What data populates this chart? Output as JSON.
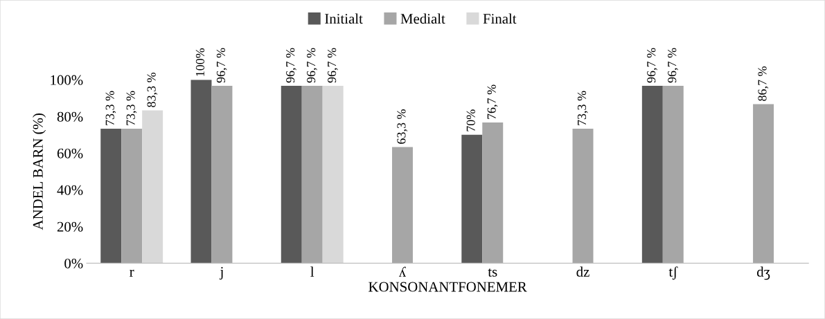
{
  "chart_data": {
    "type": "bar",
    "xlabel": "KONSONANTFONEMER",
    "ylabel": "ANDEL BARN (%)",
    "categories": [
      "r",
      "j",
      "l",
      "ʎ",
      "ts",
      "dz",
      "tʃ",
      "dʒ"
    ],
    "series": [
      {
        "name": "Initialt",
        "color": "#595959",
        "values": [
          73.3,
          100,
          96.7,
          null,
          70,
          null,
          96.7,
          null
        ],
        "value_labels": [
          "73,3 %",
          "100%",
          "96,7 %",
          null,
          "70%",
          null,
          "96,7 %",
          null
        ]
      },
      {
        "name": "Medialt",
        "color": "#a6a6a6",
        "values": [
          73.3,
          96.7,
          96.7,
          63.3,
          76.7,
          73.3,
          96.7,
          86.7
        ],
        "value_labels": [
          "73,3 %",
          "96,7 %",
          "96,7 %",
          "63,3 %",
          "76,7 %",
          "73,3 %",
          "96,7 %",
          "86,7 %"
        ]
      },
      {
        "name": "Finalt",
        "color": "#d9d9d9",
        "values": [
          83.3,
          null,
          96.7,
          null,
          null,
          null,
          null,
          null
        ],
        "value_labels": [
          "83,3 %",
          null,
          "96,7 %",
          null,
          null,
          null,
          null,
          null
        ]
      }
    ],
    "ylim": [
      0,
      100
    ],
    "yticks": [
      {
        "value": 0,
        "label": "0%"
      },
      {
        "value": 20,
        "label": "20%"
      },
      {
        "value": 40,
        "label": "40%"
      },
      {
        "value": 60,
        "label": "60%"
      },
      {
        "value": 80,
        "label": "80%"
      },
      {
        "value": 100,
        "label": "100%"
      }
    ],
    "grid": false,
    "legend": "top"
  }
}
